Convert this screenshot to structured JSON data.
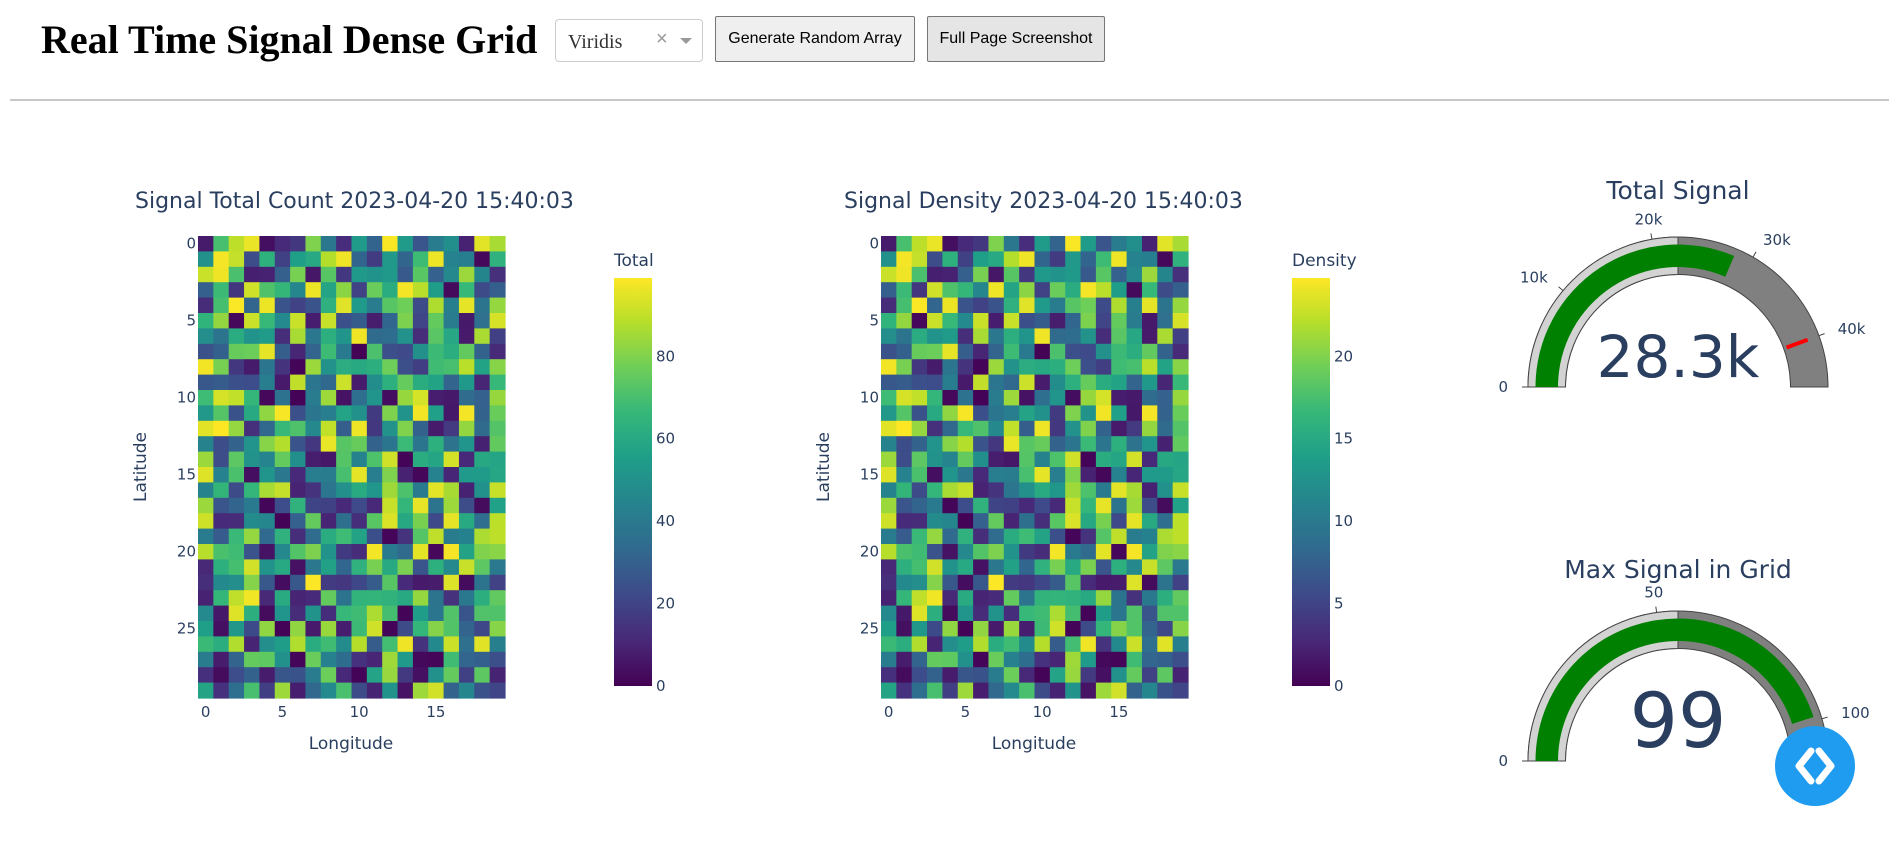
{
  "header": {
    "title": "Real Time Signal Dense Grid",
    "colormap_select": {
      "value": "Viridis",
      "clear_glyph": "×"
    },
    "buttons": {
      "generate": "Generate Random Array",
      "screenshot": "Full Page Screenshot"
    }
  },
  "theme": {
    "text": "#2a3f5f",
    "gauge_bar": "#008000",
    "gauge_bg": "#808080",
    "gauge_step": "#d3d3d3",
    "gauge_threshold": "#ff0000",
    "fab": "#1f9cf0"
  },
  "chart_data": [
    {
      "type": "heatmap",
      "title": "Signal Total Count 2023-04-20 15:40:03",
      "xlabel": "Longitude",
      "ylabel": "Latitude",
      "x_ticks": [
        "0",
        "5",
        "10",
        "15"
      ],
      "y_ticks": [
        "0",
        "5",
        "10",
        "15",
        "20",
        "25"
      ],
      "x_range": [
        0,
        19
      ],
      "y_range": [
        0,
        29
      ],
      "colorscale": "Viridis",
      "colorbar": {
        "title": "Total",
        "ticks": [
          "0",
          "20",
          "40",
          "60",
          "80"
        ],
        "range": [
          0,
          99
        ]
      },
      "grid": {
        "cols": 20,
        "rows": 30,
        "seed": 1234
      }
    },
    {
      "type": "heatmap",
      "title": "Signal Density 2023-04-20 15:40:03",
      "xlabel": "Longitude",
      "ylabel": "Latitude",
      "x_ticks": [
        "0",
        "5",
        "10",
        "15"
      ],
      "y_ticks": [
        "0",
        "5",
        "10",
        "15",
        "20",
        "25"
      ],
      "x_range": [
        0,
        19
      ],
      "y_range": [
        0,
        29
      ],
      "colorscale": "Viridis",
      "colorbar": {
        "title": "Density",
        "ticks": [
          "0",
          "5",
          "10",
          "15",
          "20"
        ],
        "range": [
          0,
          24.75
        ]
      },
      "grid": {
        "cols": 20,
        "rows": 30,
        "seed": 1234
      }
    },
    {
      "type": "gauge",
      "title": "Total Signal",
      "value": 28300,
      "value_label": "28.3k",
      "range": [
        0,
        45000
      ],
      "ticks": [
        {
          "value": 0,
          "label": "0"
        },
        {
          "value": 10000,
          "label": "10k"
        },
        {
          "value": 20000,
          "label": "20k"
        },
        {
          "value": 30000,
          "label": "30k"
        },
        {
          "value": 40000,
          "label": "40k"
        }
      ],
      "step_range": [
        0,
        22500
      ],
      "threshold": 40000
    },
    {
      "type": "gauge",
      "title": "Max Signal in Grid",
      "value": 99,
      "value_label": "99",
      "range": [
        0,
        110
      ],
      "ticks": [
        {
          "value": 0,
          "label": "0"
        },
        {
          "value": 50,
          "label": "50"
        },
        {
          "value": 100,
          "label": "100"
        }
      ],
      "step_range": [
        0,
        55
      ],
      "threshold": 104
    }
  ]
}
